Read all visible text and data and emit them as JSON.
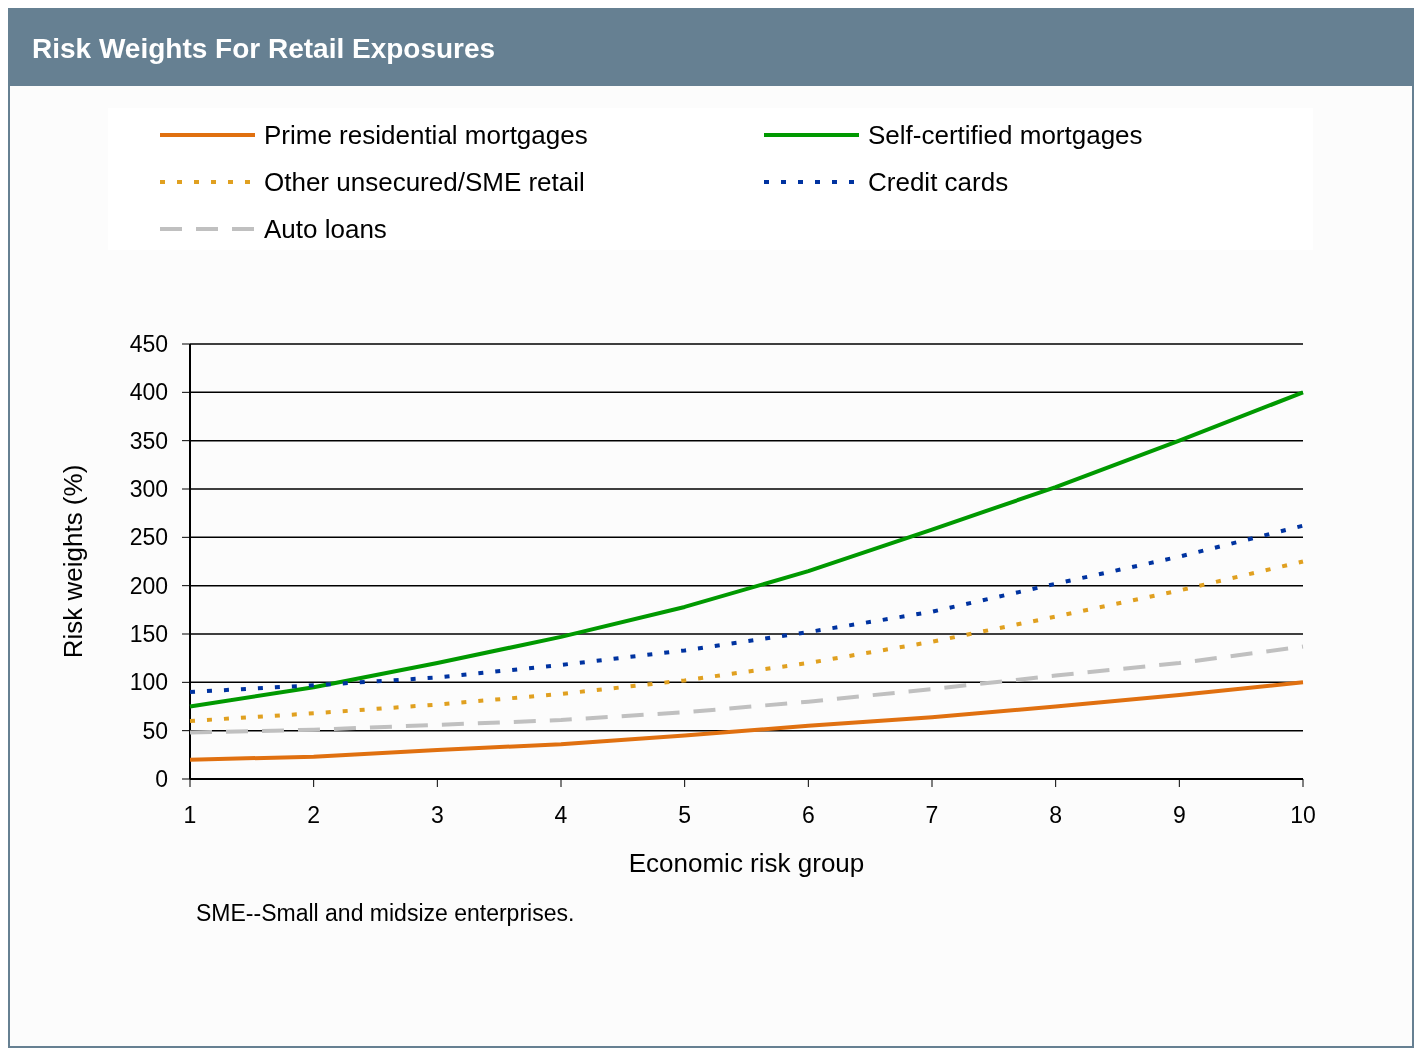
{
  "chart_data": {
    "type": "line",
    "title": "Risk Weights For Retail Exposures",
    "xlabel": "Economic risk group",
    "ylabel": "Risk weights (%)",
    "x": [
      1,
      2,
      3,
      4,
      5,
      6,
      7,
      8,
      9,
      10
    ],
    "xlim": [
      1,
      10
    ],
    "xticks": [
      1,
      2,
      3,
      4,
      5,
      6,
      7,
      8,
      9,
      10
    ],
    "ylim": [
      0,
      450
    ],
    "yticks": [
      0,
      50,
      100,
      150,
      200,
      250,
      300,
      350,
      400,
      450
    ],
    "grid": "y",
    "legend": "top",
    "series": [
      {
        "name": "Prime residential mortgages",
        "color": "#e07010",
        "line_style": "solid",
        "values": [
          20,
          23,
          30,
          36,
          45,
          55,
          64,
          75,
          87,
          100
        ]
      },
      {
        "name": "Self-certified mortgages",
        "color": "#009900",
        "line_style": "solid",
        "values": [
          75,
          95,
          120,
          147,
          178,
          215,
          258,
          302,
          350,
          400
        ]
      },
      {
        "name": "Other unsecured/SME retail",
        "color": "#e0a020",
        "line_style": "dotted",
        "values": [
          60,
          68,
          77,
          88,
          102,
          120,
          142,
          168,
          195,
          225
        ]
      },
      {
        "name": "Credit cards",
        "color": "#0033a0",
        "line_style": "dotted",
        "values": [
          90,
          97,
          105,
          118,
          133,
          152,
          173,
          202,
          230,
          262
        ]
      },
      {
        "name": "Auto loans",
        "color": "#c0c0c0",
        "line_style": "dashed",
        "values": [
          48,
          51,
          56,
          61,
          69,
          80,
          93,
          107,
          120,
          137
        ]
      }
    ],
    "annotations": [
      "SME--Small and midsize enterprises."
    ]
  }
}
